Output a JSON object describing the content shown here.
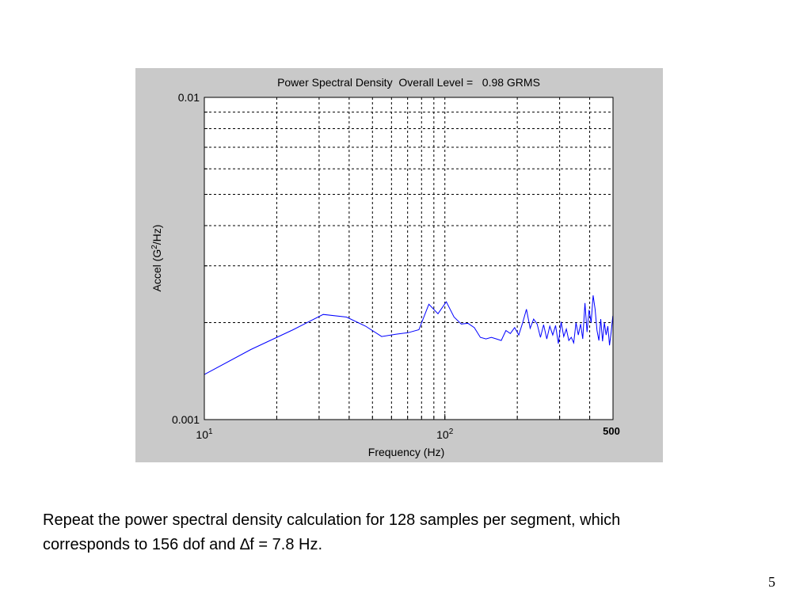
{
  "chart_data": {
    "type": "line",
    "title": "Power Spectral Density  Overall Level =   0.98 GRMS",
    "xlabel": "Frequency (Hz)",
    "ylabel": "Accel (G^2/Hz)",
    "xscale": "log",
    "yscale": "log",
    "xlim": [
      10,
      500
    ],
    "ylim": [
      0.001,
      0.01
    ],
    "grid": true,
    "x_ticks": [
      {
        "value": 10,
        "base": "10",
        "exp": "1"
      },
      {
        "value": 100,
        "base": "10",
        "exp": "2"
      }
    ],
    "x_extra_label": {
      "value": 500,
      "text": "500",
      "color": "#000000"
    },
    "y_ticks": [
      {
        "value": 0.001,
        "text": "0.001"
      },
      {
        "value": 0.01,
        "text": "0.01"
      }
    ],
    "line_color": "#0000ff",
    "series": [
      {
        "name": "PSD",
        "x": [
          10,
          15.6,
          23.4,
          31.2,
          39.0,
          46.8,
          54.6,
          62.4,
          70.2,
          78.0,
          85.8,
          93.6,
          101.4,
          109.2,
          117.0,
          124.8,
          132.6,
          140.4,
          148.2,
          156.0,
          163.8,
          171.6,
          179.4,
          187.2,
          195.0,
          202.8,
          210.6,
          218.4,
          226.2,
          234.0,
          241.8,
          249.6,
          257.4,
          265.2,
          273.0,
          280.8,
          288.6,
          296.4,
          304.2,
          312.0,
          319.8,
          327.6,
          335.4,
          343.2,
          351.0,
          358.8,
          366.6,
          374.4,
          382.2,
          390.0,
          397.8,
          405.6,
          413.4,
          421.2,
          429.0,
          436.8,
          444.6,
          452.4,
          460.2,
          468.0,
          475.8,
          483.6,
          491.4,
          499.2
        ],
        "y": [
          0.00138,
          0.00165,
          0.0019,
          0.00212,
          0.00208,
          0.00195,
          0.00181,
          0.00184,
          0.00186,
          0.0019,
          0.00228,
          0.00213,
          0.00232,
          0.00208,
          0.00198,
          0.00199,
          0.00193,
          0.0018,
          0.00178,
          0.0018,
          0.00178,
          0.00176,
          0.00189,
          0.00185,
          0.00193,
          0.00183,
          0.002,
          0.0022,
          0.00192,
          0.00205,
          0.00198,
          0.0018,
          0.00197,
          0.00178,
          0.00195,
          0.00183,
          0.00196,
          0.00172,
          0.00201,
          0.00181,
          0.00191,
          0.00176,
          0.0018,
          0.00173,
          0.002,
          0.00183,
          0.00198,
          0.00178,
          0.0023,
          0.00187,
          0.00219,
          0.002,
          0.00243,
          0.0022,
          0.00189,
          0.00176,
          0.00205,
          0.00175,
          0.002,
          0.00183,
          0.00195,
          0.0017,
          0.00187,
          0.0021
        ]
      }
    ]
  },
  "caption": {
    "line1": "Repeat the power spectral density calculation for 128 samples per segment, which",
    "line2": "corresponds to 156 dof and ∆f =  7.8 Hz."
  },
  "slide_number": "5"
}
